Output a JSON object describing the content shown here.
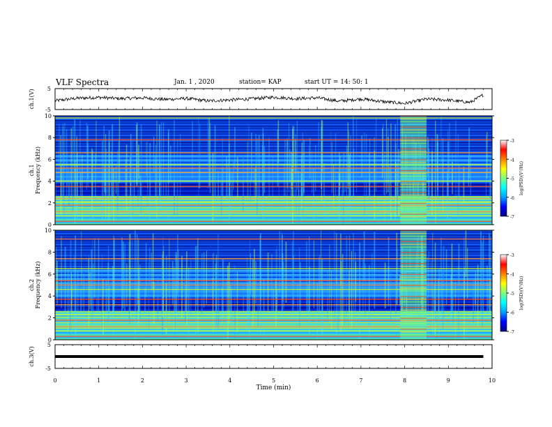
{
  "header": {
    "title": "VLF Spectra",
    "date": "Jan.  1  , 2020",
    "station": "station= KAP",
    "start": "start  UT =   14: 50: 1"
  },
  "colors": {
    "frame": "#000000",
    "colorbar": [
      "#000080",
      "#0000ff",
      "#00a0ff",
      "#00ffff",
      "#80ff80",
      "#ffff00",
      "#ff8000",
      "#ff0000",
      "#ffffff"
    ]
  },
  "chart_data": [
    {
      "type": "line",
      "name": "ch1-waveform",
      "ylabel": "ch.1(V)",
      "ylim": [
        -5,
        5
      ],
      "yticks": [
        "5",
        "-5"
      ],
      "x": [
        0,
        0.5,
        1,
        1.5,
        2,
        2.5,
        3,
        3.5,
        4,
        4.5,
        5,
        5.5,
        6,
        6.5,
        7,
        7.5,
        8,
        8.5,
        9,
        9.5,
        9.8
      ],
      "y": [
        -0.8,
        0.4,
        0.8,
        0.2,
        0.6,
        -0.2,
        0.3,
        -0.9,
        -0.4,
        0.1,
        0.9,
        0.2,
        0.6,
        -1.0,
        0.1,
        -1.2,
        -2.1,
        0.0,
        -0.5,
        -1.6,
        2.0
      ]
    },
    {
      "type": "heatmap",
      "name": "ch1-spectrogram",
      "ylabel": "ch.1\nFrequency  (kHz)",
      "xlim": [
        0,
        10
      ],
      "ylim": [
        0,
        10
      ],
      "yticks": [
        "0",
        "2",
        "4",
        "6",
        "8",
        "10"
      ],
      "colorbar": {
        "label": "log(PSD)(V²/Hz)",
        "range": [
          -7,
          -3
        ],
        "ticks": [
          "-3",
          "-4",
          "-5",
          "-6",
          "-7"
        ]
      },
      "bands_khz": [
        0.3,
        0.8,
        1.2,
        1.8,
        2.1,
        2.4,
        3.5,
        4.0,
        4.8,
        5.2,
        5.5,
        6.6,
        7.8,
        9.8
      ],
      "burst": {
        "t_start_min": 7.9,
        "t_end_min": 8.5
      }
    },
    {
      "type": "heatmap",
      "name": "ch2-spectrogram",
      "ylabel": "ch.2\nFrequency  (kHz)",
      "xlim": [
        0,
        10
      ],
      "ylim": [
        0,
        10
      ],
      "yticks": [
        "0",
        "2",
        "4",
        "6",
        "8",
        "10"
      ],
      "colorbar": {
        "label": "log(PSD)(V²/Hz)",
        "range": [
          -7,
          -3
        ],
        "ticks": [
          "-3",
          "-4",
          "-5",
          "-6",
          "-7"
        ]
      },
      "bands_khz": [
        0.3,
        0.8,
        1.2,
        1.8,
        2.3,
        3.2,
        3.7,
        4.6,
        5.0,
        5.4,
        6.5,
        7.4,
        9.2
      ],
      "burst": {
        "t_start_min": 7.9,
        "t_end_min": 8.5
      }
    },
    {
      "type": "line",
      "name": "ch3-waveform",
      "ylabel": "ch.3(V)",
      "ylim": [
        -5,
        5
      ],
      "yticks": [
        "5",
        "-5"
      ],
      "x": [
        0,
        9.8
      ],
      "y": [
        0,
        0
      ],
      "xlabel": "Time  (min)",
      "xticks": [
        "0",
        "1",
        "2",
        "3",
        "4",
        "5",
        "6",
        "7",
        "8",
        "9",
        "10"
      ]
    }
  ]
}
